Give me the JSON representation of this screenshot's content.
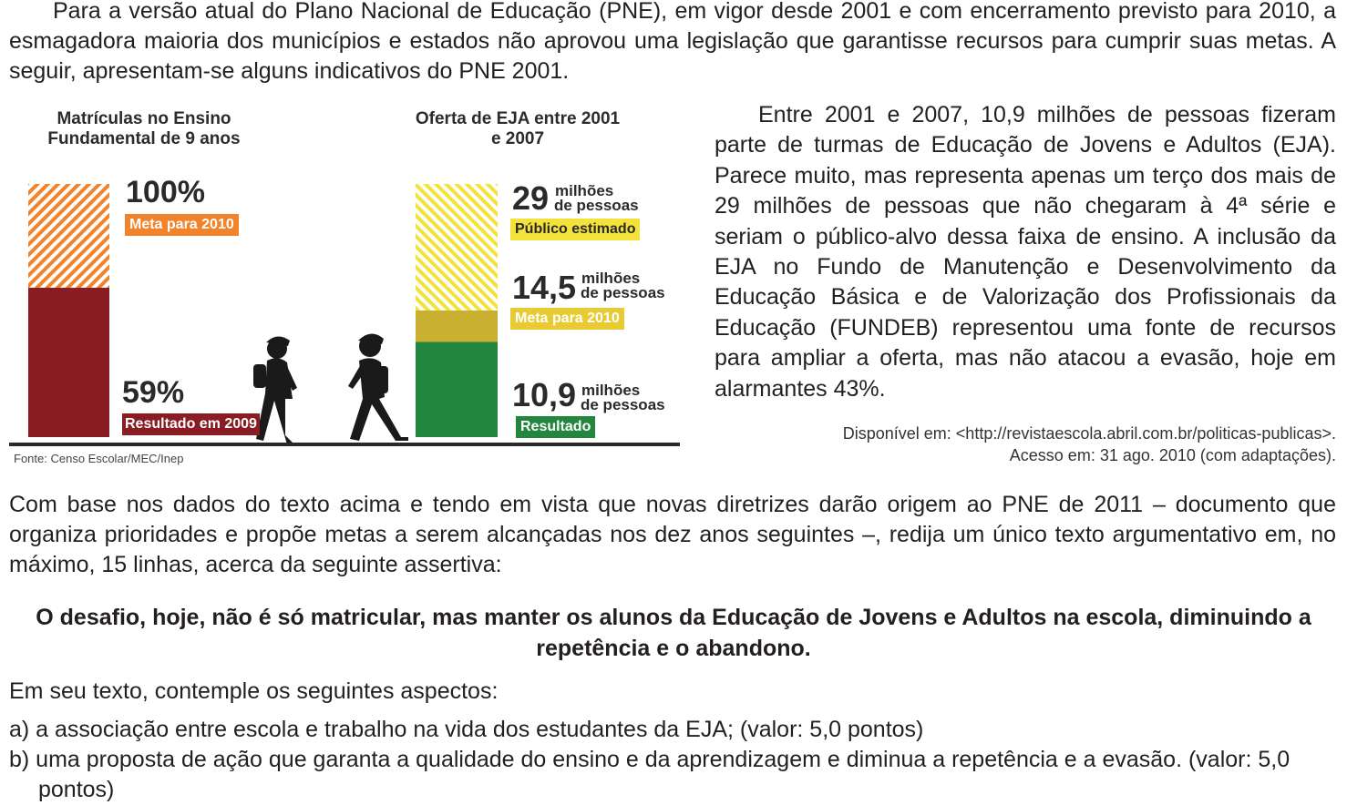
{
  "intro": "Para a versão atual do Plano Nacional de Educação (PNE), em vigor desde 2001 e com encerramento previsto para 2010, a esmagadora maioria dos municípios e estados não aprovou uma legislação que garantisse recursos para cumprir suas metas. A seguir, apresentam-se alguns indicativos do PNE 2001.",
  "colors": {
    "orange": "#f2832a",
    "dark_red": "#8a1c24",
    "yellow": "#f3e23a",
    "gold": "#c9b031",
    "green": "#22863f"
  },
  "chart_data": [
    {
      "type": "bar",
      "title": "Matrículas no Ensino Fundamental de 9 anos",
      "categories": [
        "Meta para 2010",
        "Resultado em 2009"
      ],
      "unit": "%",
      "stacked": true,
      "series": [
        {
          "name": "Resultado em 2009",
          "value": 59,
          "label": "59%",
          "color": "#8a1c24"
        },
        {
          "name": "Meta para 2010",
          "value": 100,
          "label": "100%",
          "color": "#f2832a",
          "pattern": "hatched"
        }
      ]
    },
    {
      "type": "bar",
      "title": "Oferta de EJA entre 2001 e 2007",
      "unit": "milhões de pessoas",
      "stacked": true,
      "series": [
        {
          "name": "Resultado",
          "value": 10.9,
          "label": "10,9",
          "color": "#22863f"
        },
        {
          "name": "Meta para 2010",
          "value": 14.5,
          "label": "14,5",
          "color": "#c9b031"
        },
        {
          "name": "Público estimado",
          "value": 29,
          "label": "29",
          "color": "#f3e23a",
          "pattern": "hatched"
        }
      ]
    }
  ],
  "chart1": {
    "title": "Matrículas no Ensino Fundamental de 9 anos",
    "top_value": "100%",
    "top_tag": "Meta para 2010",
    "bottom_value": "59%",
    "bottom_tag": "Resultado em 2009"
  },
  "chart2": {
    "title": "Oferta de EJA entre 2001 e 2007",
    "v1": "29",
    "v1_unit_a": "milhões",
    "v1_unit_b": "de pessoas",
    "v1_tag": "Público estimado",
    "v2": "14,5",
    "v2_unit_a": "milhões",
    "v2_unit_b": "de pessoas",
    "v2_tag": "Meta para 2010",
    "v3": "10,9",
    "v3_unit_a": "milhões",
    "v3_unit_b": "de pessoas",
    "v3_tag": "Resultado"
  },
  "source": "Fonte: Censo Escolar/MEC/Inep",
  "right_text": "Entre 2001 e 2007, 10,9 milhões de pessoas fizeram parte de turmas de Educação de Jovens e Adultos (EJA). Parece muito, mas representa apenas um terço dos mais de 29 milhões de pessoas que não chegaram à 4ª série e seriam o público-alvo dessa faixa de ensino. A inclusão da EJA no Fundo de Manutenção e Desenvolvimento da Educação Básica e de Valorização dos Profissionais da Educação (FUNDEB) representou uma fonte de recursos para ampliar a oferta, mas não atacou a evasão, hoje em alarmantes 43%.",
  "citation_line1": "Disponível em: <http://revistaescola.abril.com.br/politicas-publicas>.",
  "citation_line2": "Acesso em: 31 ago. 2010 (com adaptações).",
  "instructions": "Com base nos dados do texto acima e tendo em vista que novas diretrizes darão origem ao PNE de 2011 – documento que organiza prioridades e propõe metas a serem alcançadas nos dez anos seguintes –, redija um único texto argumentativo em, no máximo, 15 linhas, acerca da seguinte assertiva:",
  "thesis": "O desafio, hoje, não é só matricular, mas manter os alunos da Educação de Jovens e Adultos na escola, diminuindo a repetência e o abandono.",
  "aspects_title": "Em seu texto, contemple os seguintes aspectos:",
  "aspect_a": "a) a associação entre escola e trabalho na vida dos estudantes da EJA; (valor: 5,0 pontos)",
  "aspect_b": "b) uma proposta de ação que garanta a qualidade do ensino e da aprendizagem e diminua a repetência e a evasão. (valor: 5,0 pontos)"
}
